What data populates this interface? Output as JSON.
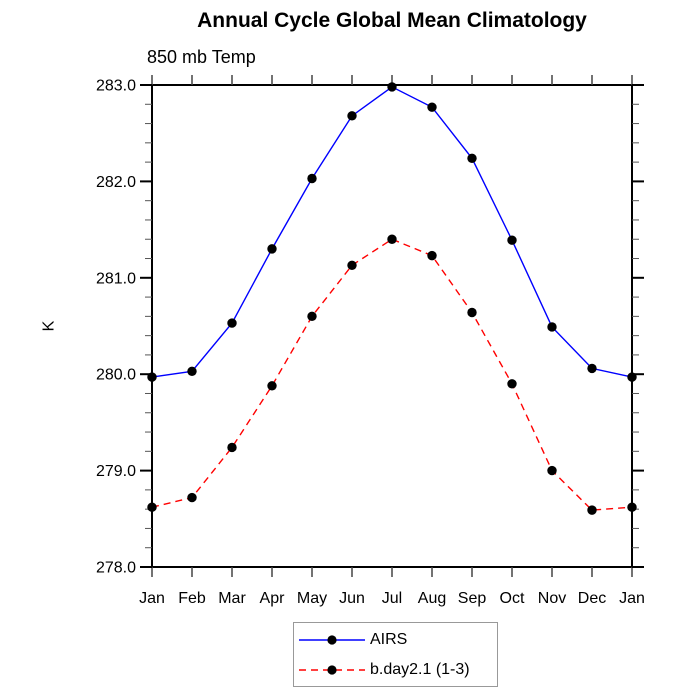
{
  "figure": {
    "background": "#ffffff",
    "axis_color": "#000000",
    "minor_tick_color": "#555555"
  },
  "chart_data": {
    "type": "line",
    "title": "Annual Cycle Global Mean Climatology",
    "subtitle": "850 mb Temp",
    "ylabel": "K",
    "xlabel": "",
    "x_tick_labels": [
      "Jan",
      "Feb",
      "Mar",
      "Apr",
      "May",
      "Jun",
      "Jul",
      "Aug",
      "Sep",
      "Oct",
      "Nov",
      "Dec",
      "Jan"
    ],
    "ylim": [
      278.0,
      283.0
    ],
    "y_major_step": 1.0,
    "y_minor_step": 0.2,
    "y_tick_labels": [
      "278.0",
      "279.0",
      "280.0",
      "281.0",
      "282.0",
      "283.0"
    ],
    "grid": false,
    "legend_position": "bottom-center",
    "series": [
      {
        "name": "AIRS",
        "color": "#0000ff",
        "line_style": "solid",
        "marker": "filled-circle",
        "marker_color": "#000000",
        "values": [
          279.97,
          280.03,
          280.53,
          281.3,
          282.03,
          282.68,
          282.98,
          282.77,
          282.24,
          281.39,
          280.49,
          280.06,
          279.97
        ]
      },
      {
        "name": "b.day2.1 (1-3)",
        "color": "#ff0000",
        "line_style": "dashed",
        "marker": "filled-circle",
        "marker_color": "#000000",
        "values": [
          278.62,
          278.72,
          279.24,
          279.88,
          280.6,
          281.13,
          281.4,
          281.23,
          280.64,
          279.9,
          279.0,
          278.59,
          278.62
        ]
      }
    ]
  }
}
